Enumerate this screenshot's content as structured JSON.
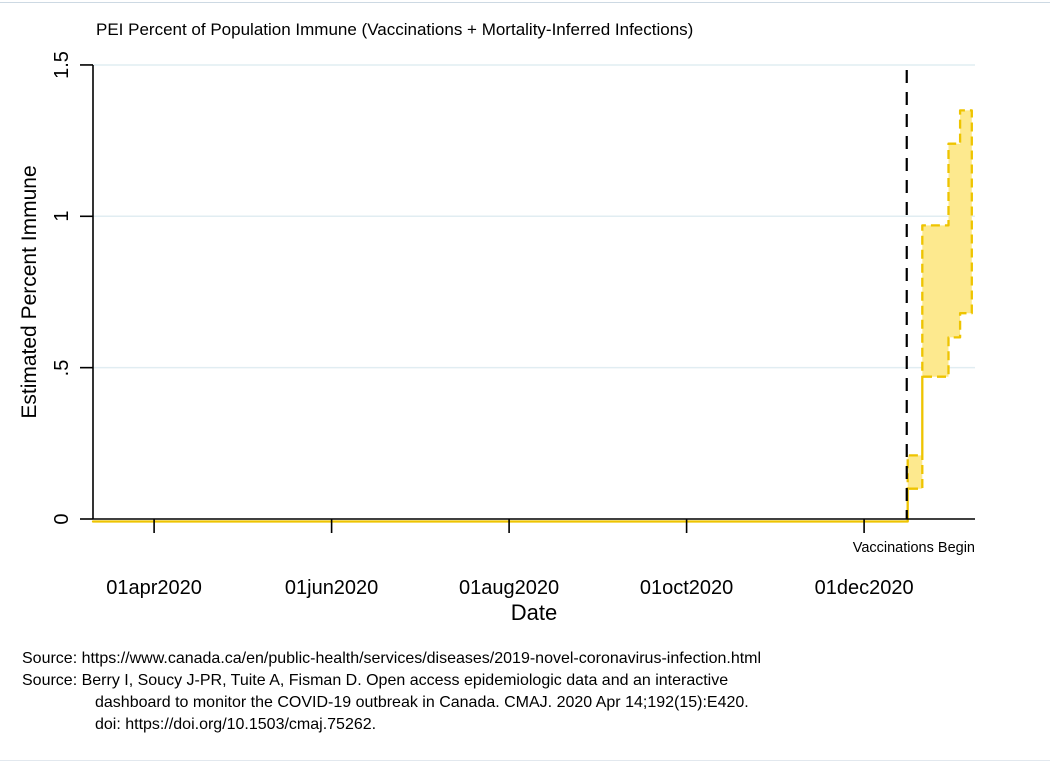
{
  "figure": {
    "title": "PEI Percent of Population Immune (Vaccinations + Mortality-Inferred Infections)",
    "x_axis_label": "Date",
    "y_axis_label": "Estimated Percent Immune",
    "annotation_label": "Vaccinations Begin"
  },
  "sources": [
    {
      "text": "Source: https://www.canada.ca/en/public-health/services/diseases/2019-novel-coronavirus-infection.html",
      "indent": false
    },
    {
      "text": "Source: Berry I, Soucy J-PR, Tuite A, Fisman D. Open access epidemiologic data and an interactive",
      "indent": false
    },
    {
      "text": "dashboard to monitor the COVID-19 outbreak in Canada. CMAJ. 2020 Apr 14;192(15):E420.",
      "indent": true
    },
    {
      "text": "doi: https://doi.org/10.1503/cmaj.75262.",
      "indent": true
    }
  ],
  "colors": {
    "band_fill": "#fde98e",
    "band_outline": "#eec400",
    "grid": "#e1edf2",
    "axis": "#000000",
    "reference_line": "#000000",
    "text": "#000000"
  },
  "chart_data": {
    "type": "area",
    "title": "PEI Percent of Population Immune (Vaccinations + Mortality-Inferred Infections)",
    "xlabel": "Date",
    "ylabel": "Estimated Percent Immune",
    "ylim": [
      0,
      1.5
    ],
    "grid": "horizontal",
    "x_ticks": [
      {
        "label": "01apr2020",
        "date": "2020-04-01"
      },
      {
        "label": "01jun2020",
        "date": "2020-06-01"
      },
      {
        "label": "01aug2020",
        "date": "2020-08-01"
      },
      {
        "label": "01oct2020",
        "date": "2020-10-01"
      },
      {
        "label": "01dec2020",
        "date": "2020-12-01"
      }
    ],
    "y_ticks": [
      {
        "label": "0",
        "value": 0
      },
      {
        "label": ".5",
        "value": 0.5
      },
      {
        "label": "1",
        "value": 1
      },
      {
        "label": "1.5",
        "value": 1.5
      }
    ],
    "band_series": {
      "name": "Estimated percent immune (lower-upper bound, stepped band)",
      "style": "stepped area with dashed yellow outline",
      "points": [
        {
          "date": "2020-03-11",
          "lower": 0,
          "upper": 0
        },
        {
          "date": "2020-12-16",
          "lower": 0.1,
          "upper": 0.21
        },
        {
          "date": "2020-12-21",
          "lower": 0.47,
          "upper": 0.97
        },
        {
          "date": "2020-12-30",
          "lower": 0.6,
          "upper": 1.24
        },
        {
          "date": "2021-01-03",
          "lower": 0.68,
          "upper": 1.35
        },
        {
          "date": "2021-01-07",
          "lower": 0.68,
          "upper": 1.35
        }
      ]
    },
    "reference_line": {
      "label": "Vaccinations Begin",
      "date": "2020-12-16",
      "orientation": "vertical",
      "style": "dashed black"
    }
  }
}
